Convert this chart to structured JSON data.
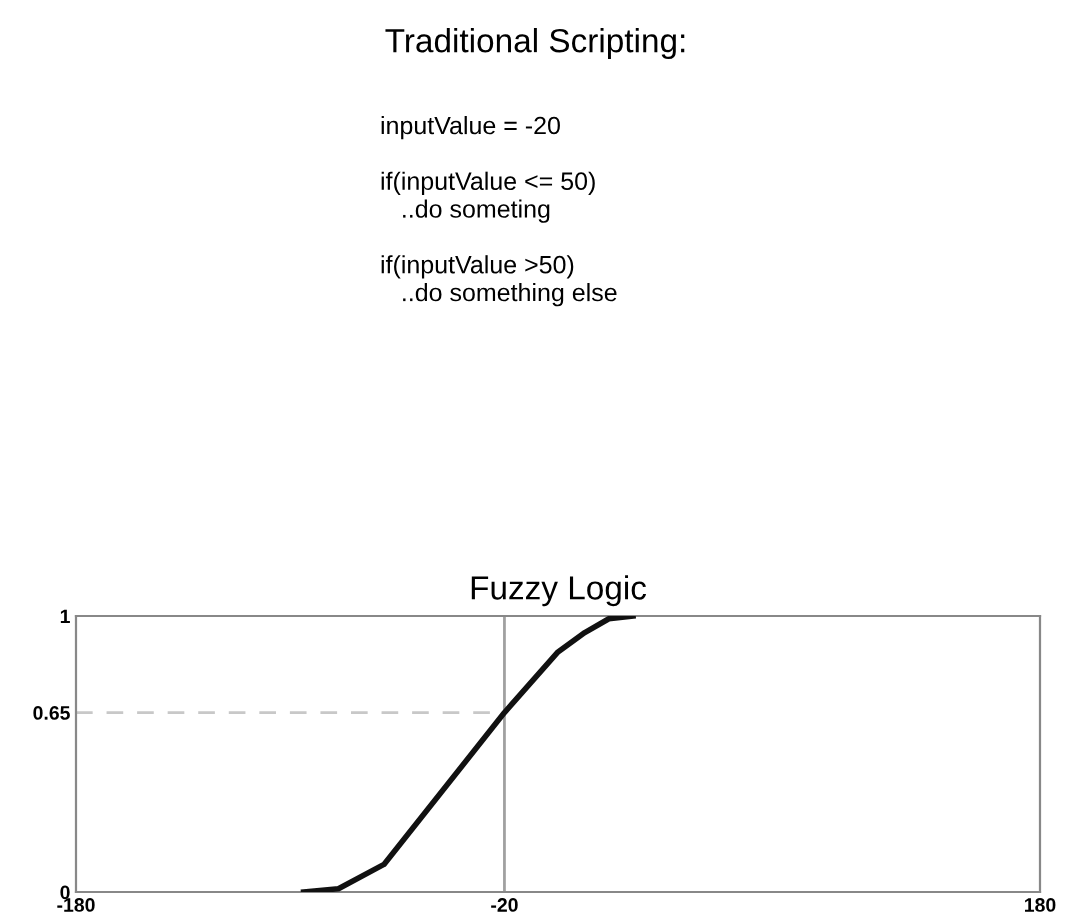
{
  "chart_data": {
    "type": "line",
    "title": "Fuzzy Logic",
    "annotations": [
      "Traditional Scripting:",
      "inputValue = -20\n\nif(inputValue <= 50)\n   ..do someting\n\nif(inputValue >50)\n   ..do something else"
    ],
    "series": [
      {
        "color": "#c8c8c8",
        "line_style": "dashed",
        "x": [
          -180,
          -20
        ],
        "values": [
          0.65,
          0.65
        ]
      },
      {
        "color": "#111111",
        "x": [
          -95,
          -82,
          -65,
          -20,
          0,
          10,
          19,
          28
        ],
        "values": [
          0,
          0.012,
          0.1,
          0.65,
          0.87,
          0.94,
          0.99,
          1
        ]
      }
    ],
    "xlim": [
      -180,
      180
    ],
    "xticks": [
      -180,
      -20,
      180
    ],
    "ylim": [
      0,
      1
    ],
    "yticks": [
      0,
      0.65,
      1
    ],
    "ref_lines": [
      {
        "axis": "x",
        "value": -20,
        "color": "#a0a0a0",
        "line_style": "solid"
      }
    ],
    "grid": false,
    "marker": "none"
  }
}
